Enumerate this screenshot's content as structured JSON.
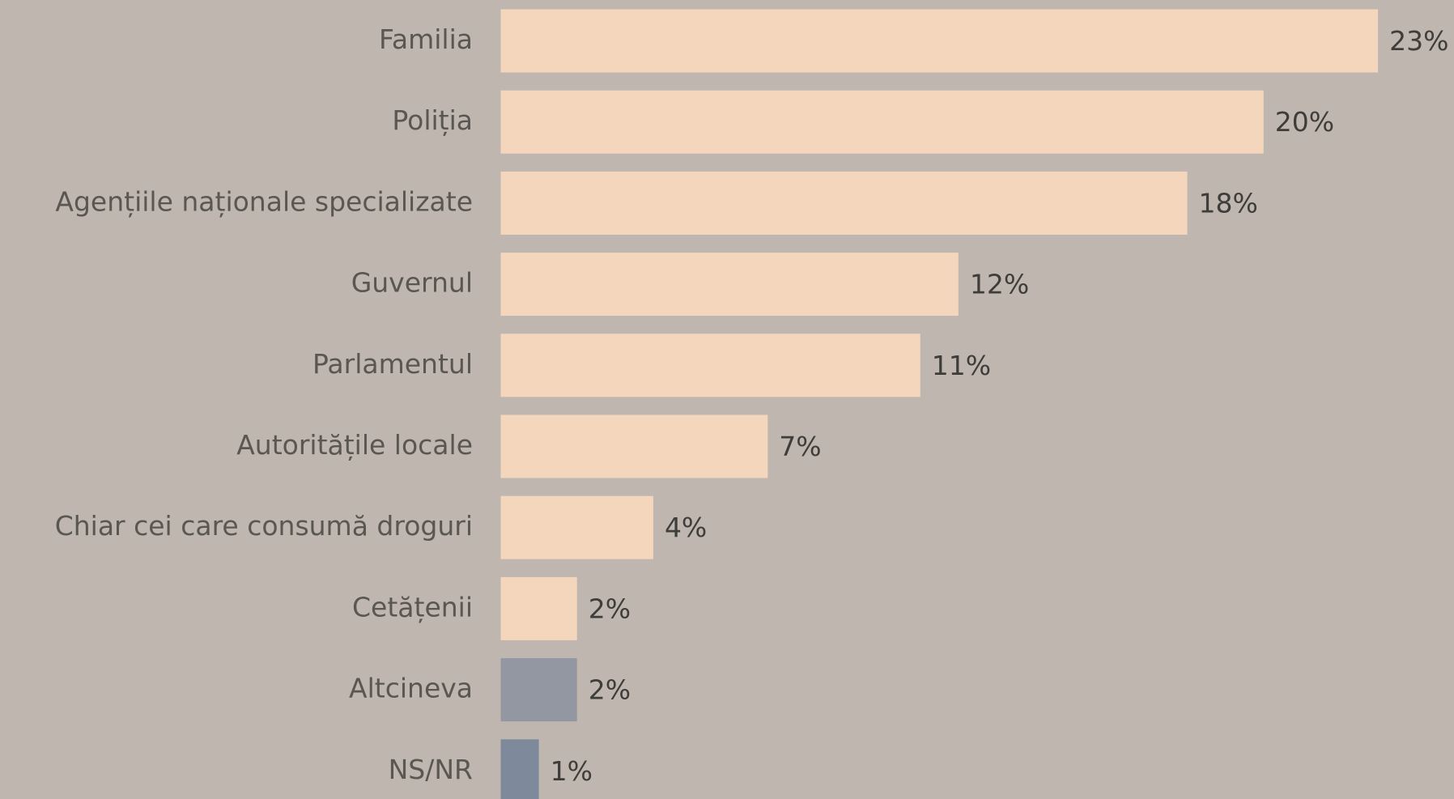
{
  "chart_data": {
    "type": "bar",
    "orientation": "horizontal",
    "categories": [
      "Familia",
      "Poliția",
      "Agențiile naționale specializate",
      "Guvernul",
      "Parlamentul",
      "Autoritățile locale",
      "Chiar cei care consumă droguri",
      "Cetățenii",
      "Altcineva",
      "NS/NR"
    ],
    "values": [
      23,
      20,
      18,
      12,
      11,
      7,
      4,
      2,
      2,
      1
    ],
    "value_labels": [
      "23%",
      "20%",
      "18%",
      "12%",
      "11%",
      "7%",
      "4%",
      "2%",
      "2%",
      "1%"
    ],
    "colors": [
      "#f4d6bd",
      "#f4d6bd",
      "#f4d6bd",
      "#f4d6bd",
      "#f4d6bd",
      "#f4d6bd",
      "#f4d6bd",
      "#f4d6bd",
      "#9397a1",
      "#7e8a9c"
    ]
  }
}
